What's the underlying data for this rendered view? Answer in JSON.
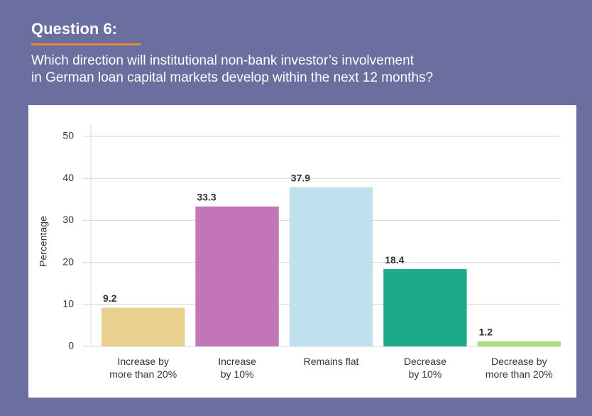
{
  "chart_data": {
    "type": "bar",
    "title": "Question 6:",
    "subtitle": [
      "Which direction will institutional non-bank investor’s involvement",
      "in German loan capital markets develop within the next 12 months?"
    ],
    "y_label": "Percentage",
    "categories": [
      "Increase by\nmore than 20%",
      "Increase\nby 10%",
      "Remains flat",
      "Decrease\nby 10%",
      "Decrease by\nmore than 20%"
    ],
    "values": [
      9.2,
      33.3,
      37.9,
      18.4,
      1.2
    ],
    "colors": [
      "#e9d08f",
      "#c276b8",
      "#bfe1ee",
      "#1bab8a",
      "#a7de7c"
    ],
    "ylim": [
      0,
      50
    ],
    "yticks": [
      0,
      10,
      20,
      30,
      40,
      50
    ],
    "grid": true
  }
}
